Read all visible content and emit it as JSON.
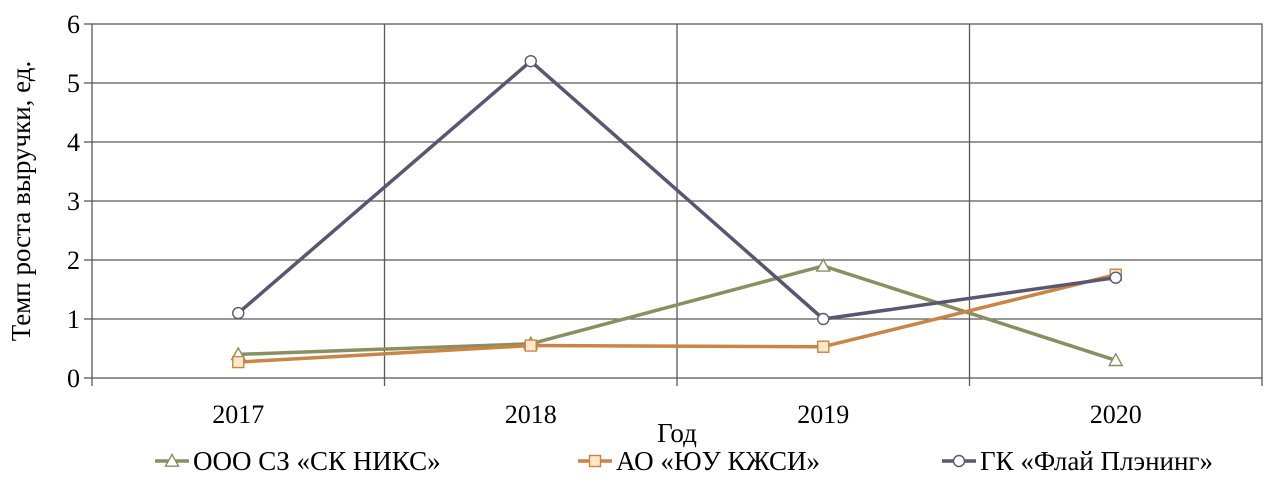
{
  "chart_data": {
    "type": "line",
    "title": "",
    "xlabel": "Год",
    "ylabel": "Темп роста выручки, ед.",
    "categories": [
      "2017",
      "2018",
      "2019",
      "2020"
    ],
    "ylim": [
      0,
      6
    ],
    "yticks": [
      "0",
      "1",
      "2",
      "3",
      "4",
      "5",
      "6"
    ],
    "grid": true,
    "legend_position": "bottom",
    "series": [
      {
        "name": "ООО СЗ «СК НИКС»",
        "values": [
          0.4,
          0.58,
          1.9,
          0.3
        ],
        "color": "#8a8f62",
        "marker": "triangle"
      },
      {
        "name": "АО «ЮУ КЖСИ»",
        "values": [
          0.27,
          0.55,
          0.53,
          1.75
        ],
        "color": "#c98446",
        "marker": "square"
      },
      {
        "name": "ГК «Флай Плэнинг»",
        "values": [
          1.1,
          5.37,
          1.0,
          1.7
        ],
        "color": "#5b5670",
        "marker": "circle"
      }
    ]
  }
}
